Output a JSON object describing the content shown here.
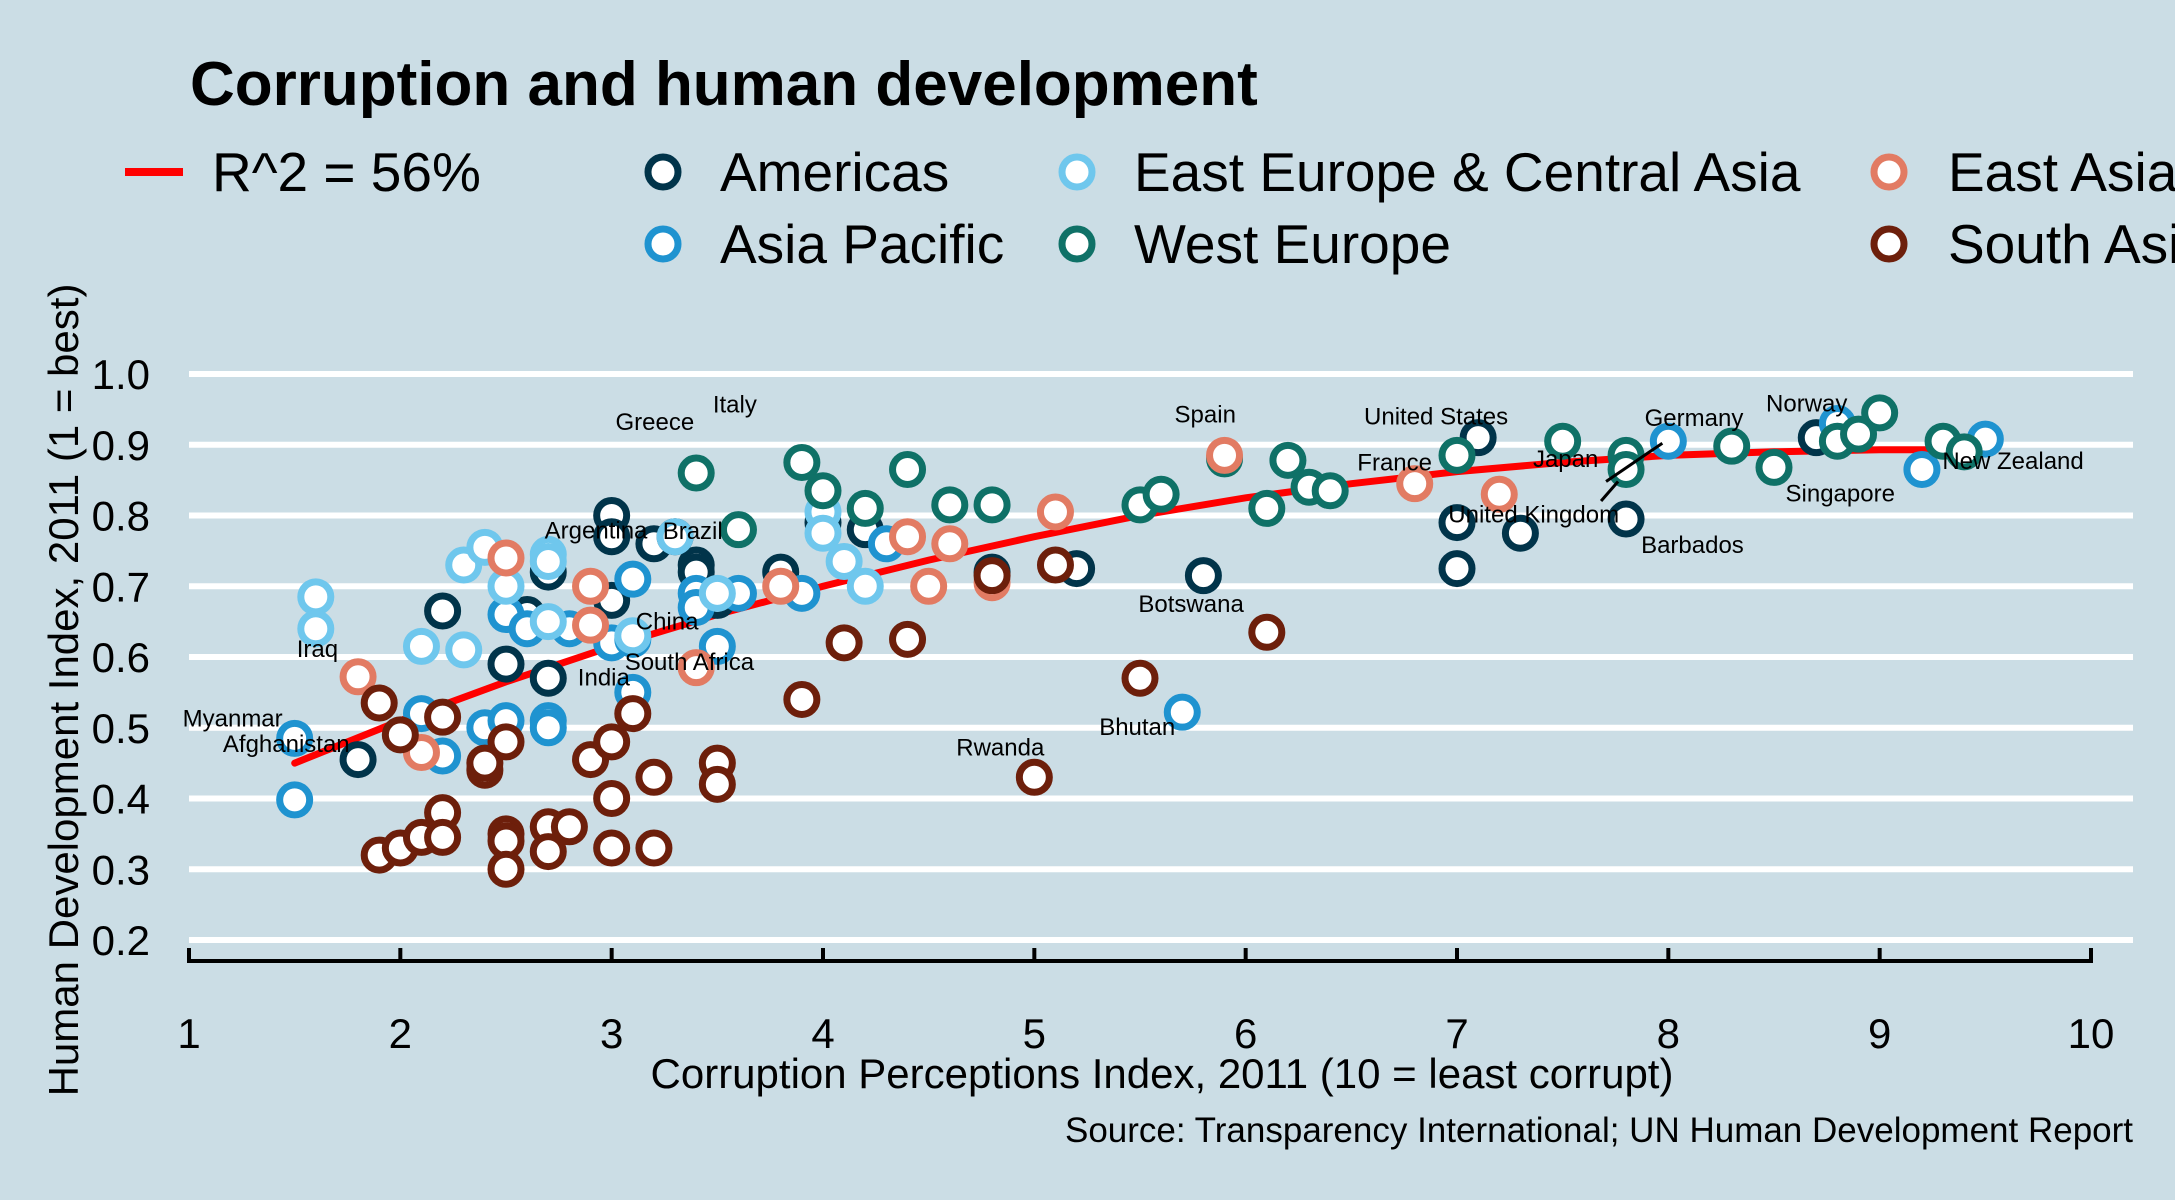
{
  "chart_data": {
    "type": "scatter",
    "title": "Corruption and human development",
    "xlabel": "Corruption Perceptions Index, 2011 (10 = least corrupt)",
    "ylabel": "Human Development Index, 2011 (1 = best)",
    "source": "Source: Transparency International; UN Human Development Report",
    "xlim": [
      1,
      10
    ],
    "ylim": [
      0.2,
      1.0
    ],
    "x_ticks": [
      1,
      2,
      3,
      4,
      5,
      6,
      7,
      8,
      9,
      10
    ],
    "y_ticks": [
      0.2,
      0.3,
      0.4,
      0.5,
      0.6,
      0.7,
      0.8,
      0.9,
      1.0
    ],
    "y_tick_labels": [
      "0.2",
      "0.3",
      "0.4",
      "0.5",
      "0.6",
      "0.7",
      "0.8",
      "0.9",
      "1.0"
    ],
    "grid": "horizontal",
    "legend_position": "top",
    "trend": {
      "label": "R^2 = 56%",
      "color": "#ff0000",
      "x": [
        1.5,
        2,
        2.5,
        3,
        3.5,
        4,
        4.5,
        5,
        5.5,
        6,
        6.5,
        7,
        7.5,
        8,
        8.5,
        9,
        9.3
      ],
      "y": [
        0.45,
        0.51,
        0.565,
        0.615,
        0.66,
        0.7,
        0.737,
        0.77,
        0.8,
        0.825,
        0.845,
        0.862,
        0.875,
        0.885,
        0.89,
        0.893,
        0.893
      ]
    },
    "series": [
      {
        "name": "Americas",
        "color": "#01344a",
        "points": [
          [
            2.2,
            0.665
          ],
          [
            1.8,
            0.455
          ],
          [
            2.5,
            0.59
          ],
          [
            2.6,
            0.65
          ],
          [
            2.6,
            0.66
          ],
          [
            2.7,
            0.72
          ],
          [
            2.7,
            0.57
          ],
          [
            3.0,
            0.8
          ],
          [
            3.0,
            0.77
          ],
          [
            3.0,
            0.68
          ],
          [
            3.2,
            0.76
          ],
          [
            3.3,
            0.77
          ],
          [
            3.4,
            0.73
          ],
          [
            3.4,
            0.72
          ],
          [
            3.5,
            0.68
          ],
          [
            3.8,
            0.72
          ],
          [
            4.0,
            0.79
          ],
          [
            4.2,
            0.78
          ],
          [
            4.8,
            0.72
          ],
          [
            5.2,
            0.725
          ],
          [
            5.8,
            0.715
          ],
          [
            7.0,
            0.79
          ],
          [
            7.0,
            0.725
          ],
          [
            7.1,
            0.91
          ],
          [
            7.3,
            0.775
          ],
          [
            7.8,
            0.795
          ],
          [
            8.7,
            0.91
          ]
        ]
      },
      {
        "name": "Asia Pacific",
        "color": "#1f93d0",
        "points": [
          [
            1.5,
            0.485
          ],
          [
            1.5,
            0.398
          ],
          [
            2.1,
            0.52
          ],
          [
            2.2,
            0.46
          ],
          [
            2.4,
            0.5
          ],
          [
            2.5,
            0.66
          ],
          [
            2.5,
            0.51
          ],
          [
            2.6,
            0.64
          ],
          [
            2.7,
            0.51
          ],
          [
            2.7,
            0.5
          ],
          [
            2.8,
            0.64
          ],
          [
            3.0,
            0.62
          ],
          [
            3.1,
            0.625
          ],
          [
            3.1,
            0.71
          ],
          [
            3.1,
            0.55
          ],
          [
            3.4,
            0.69
          ],
          [
            3.4,
            0.67
          ],
          [
            3.5,
            0.615
          ],
          [
            3.6,
            0.69
          ],
          [
            3.9,
            0.69
          ],
          [
            4.3,
            0.76
          ],
          [
            5.7,
            0.522
          ],
          [
            8.0,
            0.905
          ],
          [
            8.8,
            0.93
          ],
          [
            9.2,
            0.865
          ],
          [
            9.5,
            0.908
          ]
        ]
      },
      {
        "name": "East Europe & Central Asia",
        "color": "#6fc7ed",
        "points": [
          [
            1.6,
            0.685
          ],
          [
            1.6,
            0.64
          ],
          [
            2.1,
            0.615
          ],
          [
            2.3,
            0.73
          ],
          [
            2.3,
            0.61
          ],
          [
            2.4,
            0.755
          ],
          [
            2.5,
            0.7
          ],
          [
            2.7,
            0.745
          ],
          [
            2.7,
            0.735
          ],
          [
            2.7,
            0.65
          ],
          [
            3.1,
            0.63
          ],
          [
            3.3,
            0.77
          ],
          [
            3.5,
            0.69
          ],
          [
            4.0,
            0.805
          ],
          [
            4.0,
            0.775
          ],
          [
            4.1,
            0.735
          ],
          [
            4.2,
            0.7
          ]
        ]
      },
      {
        "name": "West Europe",
        "color": "#0f7167",
        "points": [
          [
            3.4,
            0.86
          ],
          [
            3.6,
            0.78
          ],
          [
            3.9,
            0.875
          ],
          [
            4.0,
            0.835
          ],
          [
            4.2,
            0.81
          ],
          [
            4.4,
            0.865
          ],
          [
            4.6,
            0.815
          ],
          [
            4.8,
            0.815
          ],
          [
            5.5,
            0.815
          ],
          [
            5.6,
            0.83
          ],
          [
            5.9,
            0.88
          ],
          [
            6.1,
            0.81
          ],
          [
            6.2,
            0.878
          ],
          [
            6.3,
            0.84
          ],
          [
            6.4,
            0.835
          ],
          [
            7.0,
            0.885
          ],
          [
            7.5,
            0.905
          ],
          [
            7.8,
            0.885
          ],
          [
            7.8,
            0.865
          ],
          [
            8.3,
            0.898
          ],
          [
            8.5,
            0.868
          ],
          [
            8.8,
            0.905
          ],
          [
            8.9,
            0.915
          ],
          [
            9.0,
            0.945
          ],
          [
            9.3,
            0.905
          ],
          [
            9.4,
            0.89
          ]
        ]
      },
      {
        "name": "East Asia",
        "color": "#e27b63",
        "points": [
          [
            1.8,
            0.572
          ],
          [
            2.1,
            0.465
          ],
          [
            2.5,
            0.74
          ],
          [
            2.9,
            0.7
          ],
          [
            2.9,
            0.645
          ],
          [
            3.4,
            0.585
          ],
          [
            3.8,
            0.7
          ],
          [
            4.4,
            0.77
          ],
          [
            4.5,
            0.7
          ],
          [
            4.6,
            0.76
          ],
          [
            4.8,
            0.705
          ],
          [
            5.1,
            0.805
          ],
          [
            5.9,
            0.885
          ],
          [
            6.8,
            0.845
          ],
          [
            7.2,
            0.83
          ]
        ]
      },
      {
        "name": "South Asia",
        "color": "#6d1f0b",
        "points": [
          [
            1.9,
            0.535
          ],
          [
            1.9,
            0.32
          ],
          [
            2.0,
            0.33
          ],
          [
            2.0,
            0.49
          ],
          [
            2.1,
            0.345
          ],
          [
            2.2,
            0.515
          ],
          [
            2.2,
            0.38
          ],
          [
            2.2,
            0.345
          ],
          [
            2.4,
            0.44
          ],
          [
            2.4,
            0.45
          ],
          [
            2.5,
            0.48
          ],
          [
            2.5,
            0.35
          ],
          [
            2.5,
            0.34
          ],
          [
            2.5,
            0.3
          ],
          [
            2.7,
            0.36
          ],
          [
            2.7,
            0.325
          ],
          [
            2.8,
            0.36
          ],
          [
            2.9,
            0.455
          ],
          [
            3.0,
            0.48
          ],
          [
            3.0,
            0.4
          ],
          [
            3.0,
            0.33
          ],
          [
            3.1,
            0.52
          ],
          [
            3.2,
            0.43
          ],
          [
            3.2,
            0.33
          ],
          [
            3.5,
            0.45
          ],
          [
            3.5,
            0.42
          ],
          [
            3.9,
            0.54
          ],
          [
            4.1,
            0.62
          ],
          [
            4.4,
            0.625
          ],
          [
            4.8,
            0.715
          ],
          [
            5.0,
            0.43
          ],
          [
            5.1,
            0.73
          ],
          [
            5.5,
            0.57
          ],
          [
            6.1,
            0.635
          ]
        ]
      }
    ],
    "labels": [
      {
        "text": "Myanmar",
        "x": 1.5,
        "y": 0.485
      },
      {
        "text": "Afghanistan",
        "x": 1.5,
        "y": 0.398
      },
      {
        "text": "Iraq",
        "x": 1.8,
        "y": 0.572
      },
      {
        "text": "Greece",
        "x": 3.4,
        "y": 0.86
      },
      {
        "text": "Italy",
        "x": 3.9,
        "y": 0.875
      },
      {
        "text": "Argentina",
        "x": 3.0,
        "y": 0.8
      },
      {
        "text": "Brazil",
        "x": 3.8,
        "y": 0.72
      },
      {
        "text": "China",
        "x": 3.6,
        "y": 0.69
      },
      {
        "text": "India",
        "x": 3.1,
        "y": 0.55
      },
      {
        "text": "South Africa",
        "x": 4.1,
        "y": 0.62
      },
      {
        "text": "Rwanda",
        "x": 5.0,
        "y": 0.43
      },
      {
        "text": "Bhutan",
        "x": 5.7,
        "y": 0.522
      },
      {
        "text": "Botswana",
        "x": 6.1,
        "y": 0.635
      },
      {
        "text": "Spain",
        "x": 6.2,
        "y": 0.878
      },
      {
        "text": "France",
        "x": 7.0,
        "y": 0.885
      },
      {
        "text": "United States",
        "x": 7.1,
        "y": 0.91
      },
      {
        "text": "United Kingdom",
        "x": 7.8,
        "y": 0.865
      },
      {
        "text": "Japan",
        "x": 8.0,
        "y": 0.905
      },
      {
        "text": "Barbados",
        "x": 7.8,
        "y": 0.795
      },
      {
        "text": "Germany",
        "x": 8.0,
        "y": 0.905
      },
      {
        "text": "Norway",
        "x": 8.8,
        "y": 0.93
      },
      {
        "text": "Singapore",
        "x": 9.2,
        "y": 0.865
      },
      {
        "text": "New Zealand",
        "x": 9.5,
        "y": 0.908
      }
    ]
  }
}
